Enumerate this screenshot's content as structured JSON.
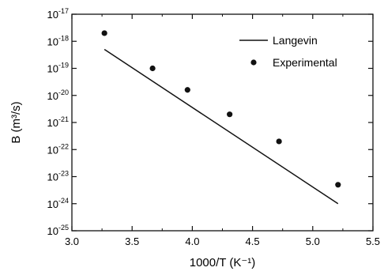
{
  "chart_data": {
    "type": "scatter",
    "xlabel": "1000/T (K⁻¹)",
    "ylabel": "B (m³/s)",
    "xlim": [
      3.0,
      5.5
    ],
    "ylim_log10": [
      -25,
      -17
    ],
    "yscale": "log",
    "grid": false,
    "legend_position": "top-right",
    "x_ticks": [
      "3.0",
      "3.5",
      "4.0",
      "4.5",
      "5.0",
      "5.5"
    ],
    "y_tick_exponents": [
      "-17",
      "-18",
      "-19",
      "-20",
      "-21",
      "-22",
      "-23",
      "-24",
      "-25"
    ],
    "series": [
      {
        "name": "Langevin",
        "style": "line",
        "x": [
          3.27,
          5.21
        ],
        "y": [
          5e-19,
          1e-24
        ]
      },
      {
        "name": "Experimental",
        "style": "markers",
        "x": [
          3.27,
          3.67,
          3.96,
          4.31,
          4.72,
          5.21
        ],
        "y": [
          2e-18,
          1e-19,
          1.6e-20,
          2e-21,
          2e-22,
          5e-24
        ]
      }
    ]
  }
}
